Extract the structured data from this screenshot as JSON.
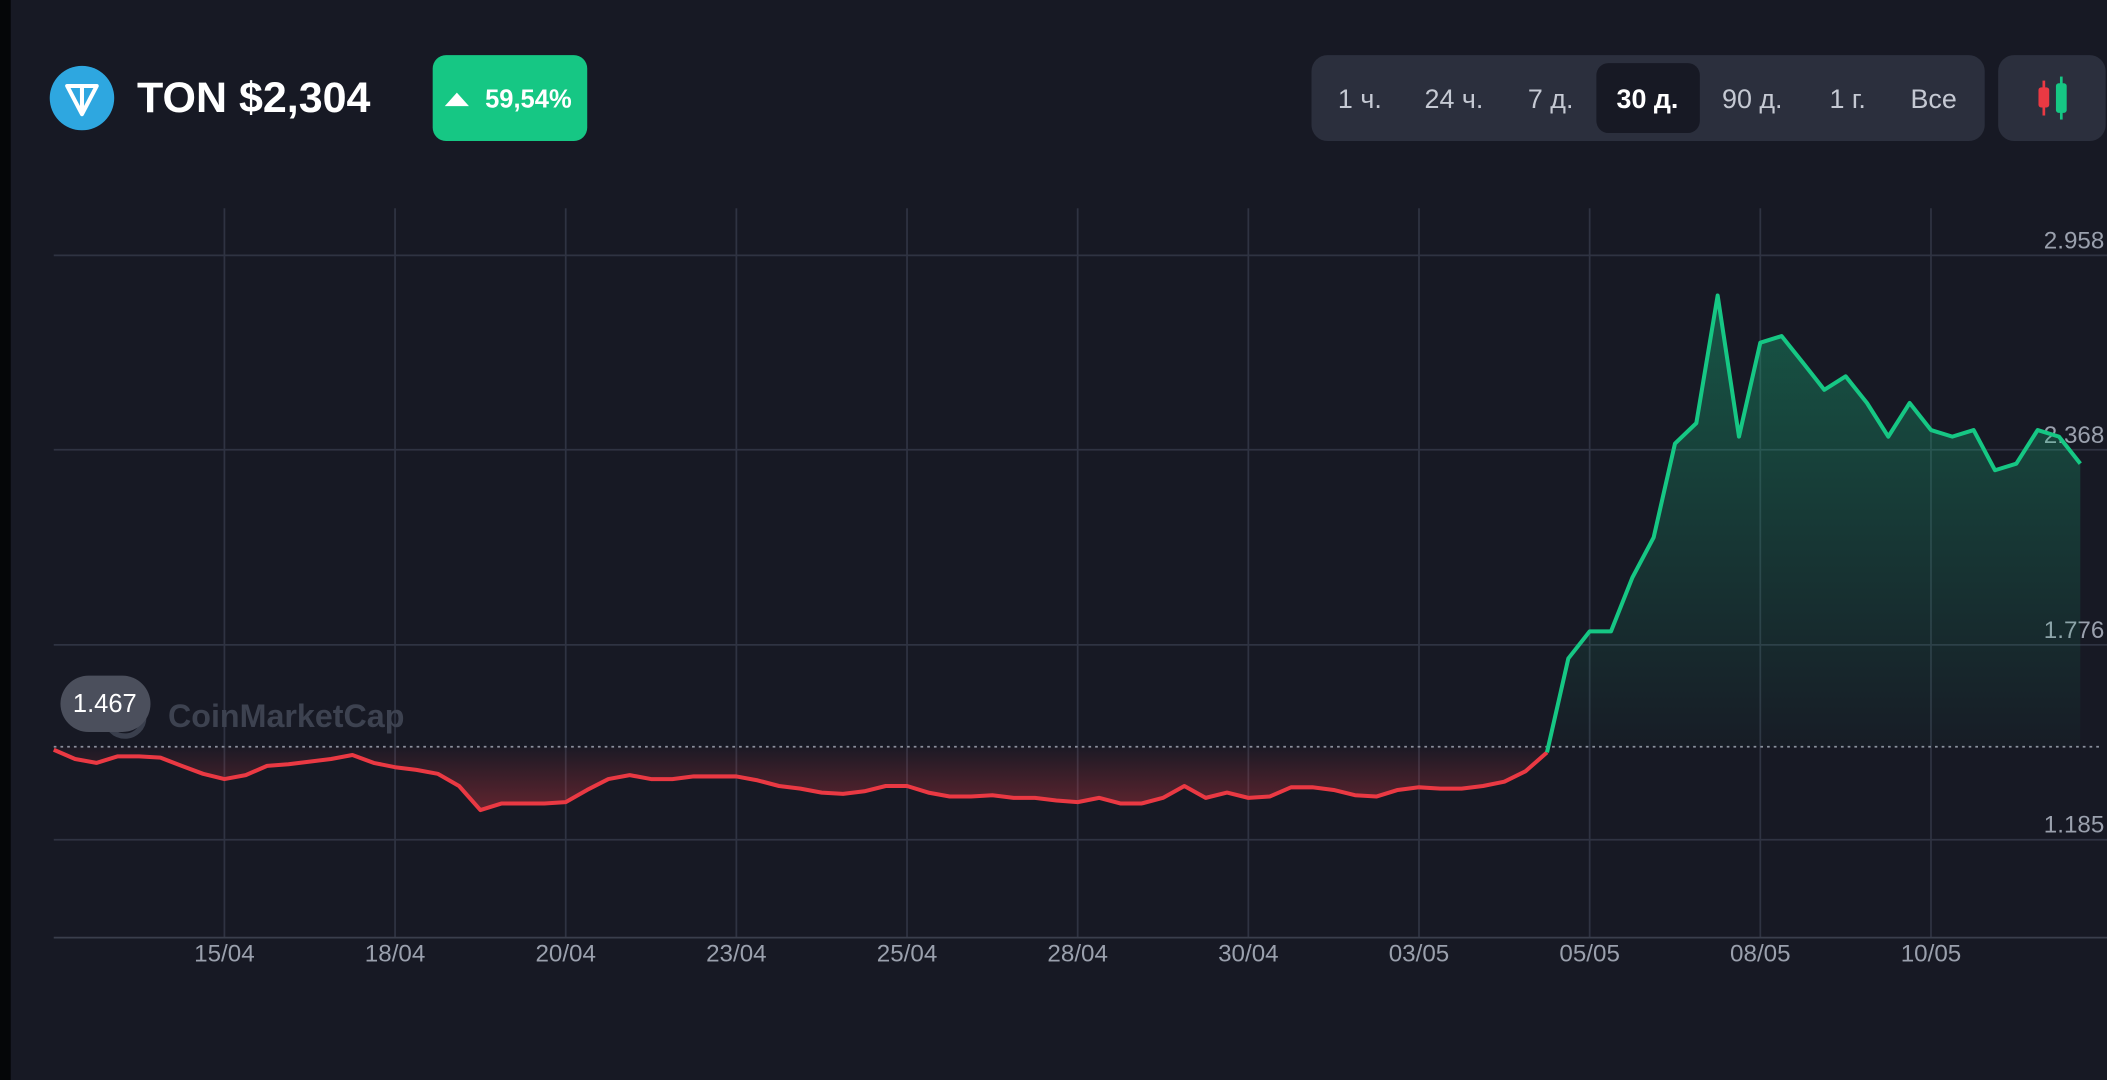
{
  "header": {
    "title": "TON $2,304",
    "change": "59,54%"
  },
  "range_buttons": {
    "options": [
      "1 ч.",
      "24 ч.",
      "7 д.",
      "30 д.",
      "90 д.",
      "1 г.",
      "Все"
    ],
    "selected": "30 д."
  },
  "chart_data": {
    "type": "line",
    "watermark": "CoinMarketCap",
    "categories": [
      null,
      null,
      null,
      null,
      null,
      null,
      null,
      null,
      "15/04",
      null,
      null,
      null,
      null,
      null,
      null,
      null,
      "18/04",
      null,
      null,
      null,
      null,
      null,
      null,
      null,
      "20/04",
      null,
      null,
      null,
      null,
      null,
      null,
      null,
      "23/04",
      null,
      null,
      null,
      null,
      null,
      null,
      null,
      "25/04",
      null,
      null,
      null,
      null,
      null,
      null,
      null,
      "28/04",
      null,
      null,
      null,
      null,
      null,
      null,
      null,
      "30/04",
      null,
      null,
      null,
      null,
      null,
      null,
      null,
      "03/05",
      null,
      null,
      null,
      null,
      null,
      null,
      null,
      "05/05",
      null,
      null,
      null,
      null,
      null,
      null,
      null,
      "08/05",
      null,
      null,
      null,
      null,
      null,
      null,
      null,
      "10/05",
      null,
      null,
      null,
      null,
      null,
      null,
      null
    ],
    "series": [
      {
        "color": "#ea3943",
        "values": [
          1.458,
          1.43,
          1.418,
          1.438,
          1.438,
          1.434,
          1.409,
          1.385,
          1.369,
          1.381,
          1.409,
          1.414,
          1.422,
          1.43,
          1.442,
          1.418,
          1.405,
          1.397,
          1.385,
          1.348,
          1.275,
          1.295,
          1.295,
          1.295,
          1.299,
          1.336,
          1.369,
          1.381,
          1.369,
          1.369,
          1.377,
          1.377,
          1.377,
          1.365,
          1.348,
          1.34,
          1.328,
          1.324,
          1.332,
          1.348,
          1.348,
          1.328,
          1.316,
          1.316,
          1.32,
          1.312,
          1.312,
          1.304,
          1.299,
          1.312,
          1.295,
          1.295,
          1.312,
          1.348,
          1.312,
          1.328,
          1.312,
          1.316,
          1.344,
          1.344,
          1.336,
          1.32,
          1.316,
          1.336,
          1.344,
          1.34,
          1.34,
          1.348,
          1.361,
          1.393,
          1.45,
          null,
          null,
          null,
          null,
          null,
          null,
          null,
          null,
          null,
          null,
          null,
          null,
          null,
          null,
          null,
          null,
          null,
          null,
          null,
          null,
          null,
          null,
          null,
          null,
          null
        ]
      },
      {
        "color": "#16c784",
        "values": [
          null,
          null,
          null,
          null,
          null,
          null,
          null,
          null,
          null,
          null,
          null,
          null,
          null,
          null,
          null,
          null,
          null,
          null,
          null,
          null,
          null,
          null,
          null,
          null,
          null,
          null,
          null,
          null,
          null,
          null,
          null,
          null,
          null,
          null,
          null,
          null,
          null,
          null,
          null,
          null,
          null,
          null,
          null,
          null,
          null,
          null,
          null,
          null,
          null,
          null,
          null,
          null,
          null,
          null,
          null,
          null,
          null,
          null,
          null,
          null,
          null,
          null,
          null,
          null,
          null,
          null,
          null,
          null,
          null,
          null,
          1.45,
          1.735,
          1.817,
          1.817,
          1.98,
          2.102,
          2.387,
          2.449,
          2.836,
          2.408,
          2.693,
          2.713,
          2.632,
          2.55,
          2.591,
          2.51,
          2.408,
          2.51,
          2.428,
          2.408,
          2.428,
          2.306,
          2.326,
          2.428,
          2.408,
          2.326
        ]
      }
    ],
    "baseline": 1.467,
    "ylim": [
      0.888,
      3.101
    ],
    "yticks": [
      1.185,
      1.776,
      2.368,
      2.958
    ],
    "grid": true
  }
}
